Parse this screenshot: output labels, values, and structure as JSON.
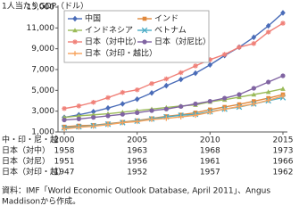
{
  "chart_data": {
    "type": "line",
    "title": "1人当たりGDP（ドル）",
    "x": [
      2000,
      2001,
      2002,
      2003,
      2004,
      2005,
      2006,
      2007,
      2008,
      2009,
      2010,
      2011,
      2012,
      2013,
      2014,
      2015
    ],
    "xlim": [
      2000,
      2015
    ],
    "xticks": [
      2000,
      2005,
      2010,
      2015
    ],
    "x_label_rows": [
      {
        "name": "中・印・尼・越",
        "labels": [
          2000,
          2005,
          2010,
          2015
        ]
      },
      {
        "name": "日本（対中）",
        "labels": [
          1958,
          1963,
          1968,
          1973
        ]
      },
      {
        "name": "日本（対尼）",
        "labels": [
          1951,
          1956,
          1961,
          1966
        ]
      },
      {
        "name": "日本（対印・越）",
        "labels": [
          1947,
          1952,
          1957,
          1962
        ]
      }
    ],
    "ylim": [
      1000,
      13000
    ],
    "yticks": [
      {
        "value": 1000,
        "label": "1,000"
      },
      {
        "value": 3000,
        "label": "3,000"
      },
      {
        "value": 5000,
        "label": "5,000"
      },
      {
        "value": 7000,
        "label": "7,000"
      },
      {
        "value": 9000,
        "label": "9,000"
      },
      {
        "value": 11000,
        "label": "11,000"
      },
      {
        "value": 13000,
        "label": "13,000"
      }
    ],
    "grid": false,
    "legend": "top-left",
    "series": [
      {
        "name": "中国",
        "color": "#4a6cb8",
        "marker": "diamond",
        "values": [
          2400,
          2650,
          2950,
          3300,
          3700,
          4150,
          4750,
          5450,
          6050,
          6650,
          7450,
          8350,
          9150,
          10100,
          11200,
          12450
        ]
      },
      {
        "name": "インド",
        "color": "#e0883c",
        "marker": "square",
        "values": [
          1500,
          1600,
          1650,
          1800,
          1950,
          2100,
          2300,
          2500,
          2650,
          2850,
          3150,
          3400,
          3650,
          3950,
          4250,
          4600
        ]
      },
      {
        "name": "インドネシア",
        "color": "#9bbb59",
        "marker": "triangle",
        "values": [
          2400,
          2550,
          2650,
          2750,
          2900,
          3050,
          3200,
          3350,
          3500,
          3600,
          3900,
          4100,
          4350,
          4600,
          4850,
          5150
        ]
      },
      {
        "name": "ベトナム",
        "color": "#4bacc6",
        "marker": "cross",
        "values": [
          1400,
          1500,
          1600,
          1750,
          1900,
          2050,
          2250,
          2450,
          2600,
          2700,
          2950,
          3200,
          3400,
          3700,
          4000,
          4300
        ]
      },
      {
        "name": "日本（対中比）",
        "color": "#f08078",
        "marker": "star",
        "values": [
          3250,
          3500,
          3850,
          4300,
          4800,
          5050,
          5650,
          6100,
          6700,
          7350,
          7950,
          8450,
          9150,
          9500,
          10600,
          11450
        ]
      },
      {
        "name": "日本（対尼比）",
        "color": "#8064a2",
        "marker": "circle",
        "values": [
          2150,
          2250,
          2400,
          2550,
          2700,
          2850,
          3050,
          3200,
          3450,
          3700,
          3950,
          4250,
          4600,
          5200,
          5800,
          6400
        ]
      },
      {
        "name": "日本（対印・越比）",
        "color": "#f7a35c",
        "marker": "plus",
        "values": [
          1300,
          1450,
          1550,
          1700,
          1900,
          2000,
          2200,
          2300,
          2450,
          2600,
          2900,
          3200,
          3450,
          3700,
          4050,
          4450
        ]
      }
    ],
    "source": [
      "資料：IMF「World Economic Outlook Database, April 2011」、Angus",
      "Maddisonから作成。"
    ]
  }
}
